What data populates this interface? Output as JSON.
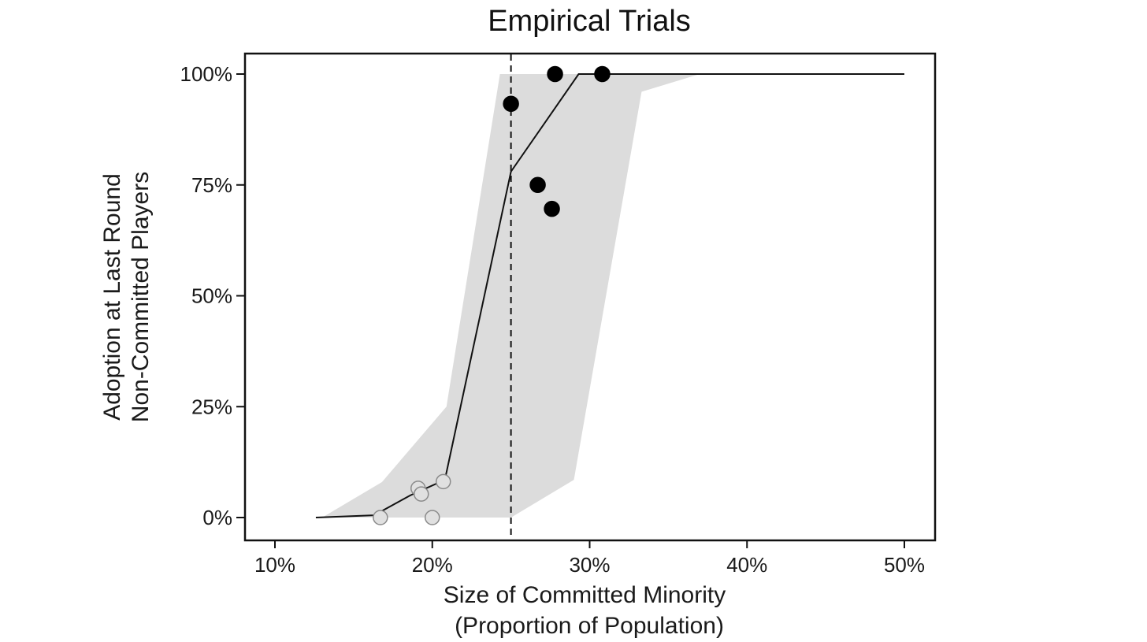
{
  "chart_data": {
    "type": "scatter",
    "title": "Empirical Trials",
    "xlabel": [
      "Size of Committed Minority",
      "(Proportion of Population)"
    ],
    "ylabel": [
      "Adoption at Last Round",
      "Non-Committed Players"
    ],
    "xlim": [
      0.08,
      0.52
    ],
    "ylim": [
      -0.05,
      1.05
    ],
    "x_ticks": [
      0.1,
      0.2,
      0.3,
      0.4,
      0.5
    ],
    "x_tick_labels": [
      "10%",
      "20%",
      "30%",
      "40%",
      "50%"
    ],
    "y_ticks": [
      0,
      0.25,
      0.5,
      0.75,
      1.0
    ],
    "y_tick_labels": [
      "0%",
      "25%",
      "50%",
      "75%",
      "100%"
    ],
    "grid": false,
    "threshold_line": {
      "x": 0.25,
      "style": "dashed"
    },
    "band": {
      "lower": [
        [
          0.13,
          0.0
        ],
        [
          0.25,
          0.0
        ],
        [
          0.29,
          0.085
        ],
        [
          0.333,
          0.96
        ],
        [
          0.37,
          1.0
        ]
      ],
      "upper": [
        [
          0.13,
          0.0
        ],
        [
          0.168,
          0.08
        ],
        [
          0.209,
          0.25
        ],
        [
          0.243,
          1.0
        ],
        [
          0.37,
          1.0
        ]
      ],
      "color": "#dcdcdc"
    },
    "model_line": {
      "x": [
        0.126,
        0.163,
        0.186,
        0.208,
        0.25,
        0.293,
        0.333,
        0.4,
        0.5
      ],
      "y": [
        0.0,
        0.005,
        0.05,
        0.085,
        0.78,
        1.0,
        1.0,
        1.0,
        1.0
      ]
    },
    "series": [
      {
        "color": "#e0e0e0",
        "x": [
          0.167,
          0.191,
          0.193,
          0.2,
          0.207
        ],
        "y": [
          0.0,
          0.066,
          0.053,
          0.0,
          0.081
        ]
      },
      {
        "color": "#000000",
        "x": [
          0.25,
          0.267,
          0.276,
          0.278,
          0.308
        ],
        "y": [
          0.933,
          0.75,
          0.696,
          1.0,
          1.0
        ]
      }
    ]
  }
}
